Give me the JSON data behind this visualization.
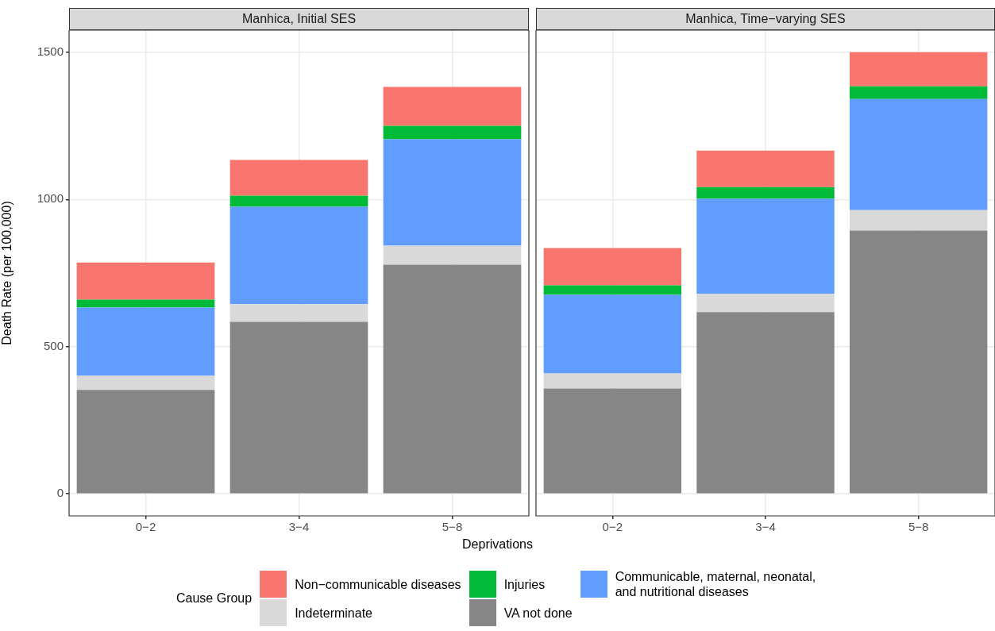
{
  "chart_data": [
    {
      "type": "bar",
      "title": "Manhica, Initial SES",
      "xlabel": "Deprivations",
      "ylabel": "Death Rate (per 100,000)",
      "legend_title": "Cause Group",
      "categories": [
        "0−2",
        "3−4",
        "5−8"
      ],
      "stacked": true,
      "grid": true,
      "legend": "bottom",
      "ylim": [
        -75,
        1575
      ],
      "yticks": [
        0,
        500,
        1000,
        1500
      ],
      "series": [
        {
          "name": "VA not done",
          "color": "#868686",
          "values": [
            353,
            584,
            778
          ]
        },
        {
          "name": "Indeterminate",
          "color": "#d9d9d9",
          "values": [
            48,
            60,
            65
          ]
        },
        {
          "name": "Communicable, maternal, neonatal, and nutritional diseases",
          "color": "#619cff",
          "values": [
            232,
            331,
            361
          ]
        },
        {
          "name": "Injuries",
          "color": "#00ba38",
          "values": [
            27,
            38,
            46
          ]
        },
        {
          "name": "Non−communicable diseases",
          "color": "#f8766d",
          "values": [
            126,
            121,
            132
          ]
        }
      ]
    },
    {
      "type": "bar",
      "title": "Manhica, Time−varying SES",
      "categories": [
        "0−2",
        "3−4",
        "5−8"
      ],
      "stacked": true,
      "grid": true,
      "tick_labels": "x",
      "ylim": [
        -75,
        1575
      ],
      "yticks": [
        0,
        500,
        1000,
        1500
      ],
      "series": [
        {
          "color": "#868686",
          "values": [
            358,
            617,
            894
          ]
        },
        {
          "color": "#d9d9d9",
          "values": [
            51,
            62,
            70
          ]
        },
        {
          "color": "#619cff",
          "values": [
            267,
            323,
            377
          ]
        },
        {
          "color": "#00ba38",
          "values": [
            32,
            40,
            43
          ]
        },
        {
          "color": "#f8766d",
          "values": [
            127,
            124,
            116
          ]
        }
      ]
    }
  ]
}
